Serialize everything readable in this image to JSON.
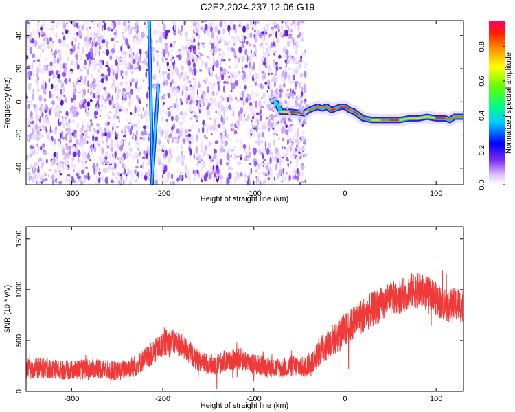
{
  "title": "C2E2.2024.237.12.06.G19",
  "colors": {
    "snr_line": "#f03a3a",
    "noise_purple": "#7a3cf0",
    "axis": "#000000"
  },
  "chart_data": [
    {
      "type": "heatmap",
      "xlabel": "Height of straight line (km)",
      "ylabel": "Frequency (Hz)",
      "xlim": [
        -350,
        130
      ],
      "ylim": [
        -50,
        49
      ],
      "xticks": [
        -300,
        -200,
        -100,
        0,
        100
      ],
      "yticks": [
        -40,
        -20,
        0,
        20,
        40
      ],
      "colorbar": {
        "label": "Normalized spectral amplitude",
        "range": [
          0,
          0.95
        ],
        "ticks": [
          0.0,
          0.2,
          0.4,
          0.6,
          0.8
        ],
        "colormap": "rainbow"
      },
      "noise_region_x": [
        -350,
        -43
      ],
      "features": [
        {
          "name": "",
          "x": [
            -215,
            -211
          ],
          "y": [
            49,
            -50
          ]
        },
        {
          "name": "",
          "x": [
            -205,
            -212
          ],
          "y": [
            10,
            -50
          ]
        }
      ],
      "ridge": {
        "x": [
          -82,
          -78,
          -75,
          -70,
          -60,
          -45,
          -40,
          -30,
          -25,
          -20,
          -15,
          -10,
          -5,
          0,
          5,
          10,
          15,
          20,
          30,
          40,
          50,
          60,
          70,
          80,
          90,
          100,
          110,
          115,
          120,
          130
        ],
        "y": [
          0,
          1,
          -1,
          -6,
          -6,
          -7,
          -5,
          -3,
          -4,
          -3,
          -5,
          -4,
          -3,
          -3,
          -5,
          -6,
          -8,
          -10,
          -11,
          -11,
          -11,
          -11,
          -10,
          -10,
          -9,
          -10,
          -10,
          -11,
          -9,
          -9
        ]
      }
    },
    {
      "type": "line",
      "xlabel": "Height of straight line (km)",
      "ylabel": "SNR (10 * v/v)",
      "xlim": [
        -350,
        130
      ],
      "ylim": [
        0,
        1620
      ],
      "xticks": [
        -300,
        -200,
        -100,
        0,
        100
      ],
      "yticks": [
        0,
        500,
        1000,
        1500
      ],
      "series": [
        {
          "name": "",
          "x": [
            -350,
            -330,
            -310,
            -290,
            -270,
            -250,
            -230,
            -215,
            -205,
            -195,
            -185,
            -175,
            -165,
            -155,
            -145,
            -130,
            -115,
            -100,
            -85,
            -70,
            -55,
            -45,
            -35,
            -25,
            -15,
            -5,
            5,
            15,
            25,
            35,
            45,
            55,
            65,
            75,
            85,
            95,
            105,
            115,
            125,
            130
          ],
          "mean": [
            220,
            230,
            210,
            215,
            225,
            200,
            250,
            350,
            420,
            490,
            480,
            420,
            330,
            280,
            260,
            300,
            320,
            270,
            240,
            230,
            250,
            240,
            300,
            420,
            500,
            560,
            640,
            720,
            780,
            830,
            880,
            920,
            950,
            1000,
            980,
            940,
            880,
            840,
            860,
            800
          ],
          "spread": [
            100,
            100,
            95,
            100,
            100,
            95,
            105,
            115,
            125,
            130,
            125,
            120,
            110,
            105,
            105,
            110,
            110,
            105,
            100,
            100,
            105,
            105,
            115,
            140,
            160,
            170,
            170,
            175,
            175,
            175,
            170,
            170,
            170,
            175,
            175,
            170,
            170,
            170,
            170,
            170
          ]
        }
      ]
    }
  ]
}
